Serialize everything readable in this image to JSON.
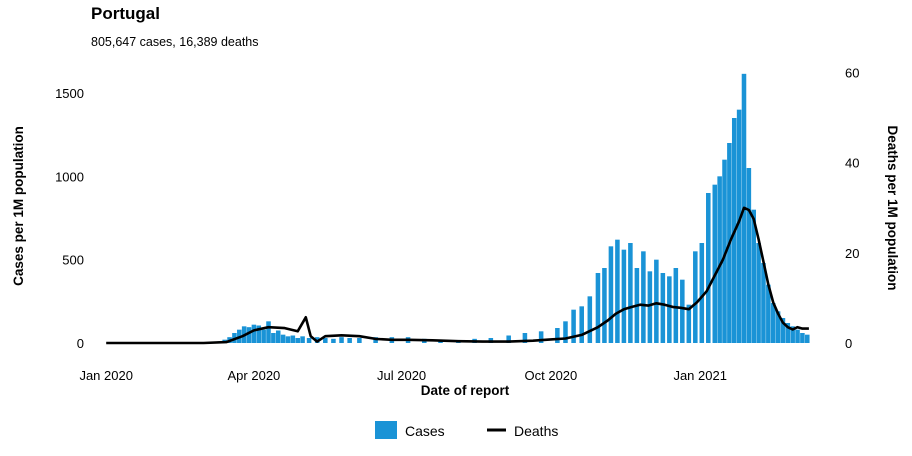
{
  "chart_data": {
    "type": "bar",
    "title": "Portugal",
    "subtitle": "805,647 cases, 16,389 deaths",
    "xlabel": "Date of report",
    "ylabel": "Cases per 1M population",
    "y2label": "Deaths per 1M population",
    "ylim": [
      0,
      1650
    ],
    "y2lim": [
      0,
      61
    ],
    "yticks": [
      0,
      500,
      1000,
      1500
    ],
    "y2ticks": [
      0,
      20,
      40,
      60
    ],
    "xlim": [
      "2019-12-22",
      "2021-03-22"
    ],
    "xticks": [
      {
        "date": "2020-01-01",
        "label": "Jan 2020"
      },
      {
        "date": "2020-04-01",
        "label": "Apr 2020"
      },
      {
        "date": "2020-07-01",
        "label": "Jul 2020"
      },
      {
        "date": "2020-10-01",
        "label": "Oct 2020"
      },
      {
        "date": "2021-01-01",
        "label": "Jan 2021"
      }
    ],
    "grid": false,
    "legend": {
      "placement": "bottom",
      "entries": [
        "Cases",
        "Deaths"
      ]
    },
    "colors": {
      "cases": "#1a93d6",
      "deaths": "#000000"
    },
    "series": [
      {
        "name": "Cases",
        "type": "bar",
        "axis": "left",
        "points": [
          [
            "2020-03-01",
            0
          ],
          [
            "2020-03-05",
            1
          ],
          [
            "2020-03-08",
            3
          ],
          [
            "2020-03-11",
            10
          ],
          [
            "2020-03-14",
            20
          ],
          [
            "2020-03-17",
            35
          ],
          [
            "2020-03-20",
            60
          ],
          [
            "2020-03-23",
            80
          ],
          [
            "2020-03-26",
            100
          ],
          [
            "2020-03-29",
            95
          ],
          [
            "2020-04-01",
            110
          ],
          [
            "2020-04-04",
            105
          ],
          [
            "2020-04-07",
            80
          ],
          [
            "2020-04-10",
            130
          ],
          [
            "2020-04-13",
            60
          ],
          [
            "2020-04-16",
            75
          ],
          [
            "2020-04-19",
            50
          ],
          [
            "2020-04-22",
            40
          ],
          [
            "2020-04-25",
            45
          ],
          [
            "2020-04-28",
            30
          ],
          [
            "2020-05-01",
            40
          ],
          [
            "2020-05-05",
            30
          ],
          [
            "2020-05-10",
            35
          ],
          [
            "2020-05-15",
            30
          ],
          [
            "2020-05-20",
            25
          ],
          [
            "2020-05-25",
            35
          ],
          [
            "2020-05-30",
            30
          ],
          [
            "2020-06-05",
            30
          ],
          [
            "2020-06-15",
            35
          ],
          [
            "2020-06-25",
            35
          ],
          [
            "2020-07-05",
            35
          ],
          [
            "2020-07-15",
            25
          ],
          [
            "2020-07-25",
            20
          ],
          [
            "2020-08-05",
            18
          ],
          [
            "2020-08-15",
            25
          ],
          [
            "2020-08-25",
            30
          ],
          [
            "2020-09-05",
            45
          ],
          [
            "2020-09-15",
            60
          ],
          [
            "2020-09-25",
            70
          ],
          [
            "2020-10-05",
            90
          ],
          [
            "2020-10-10",
            130
          ],
          [
            "2020-10-15",
            200
          ],
          [
            "2020-10-20",
            220
          ],
          [
            "2020-10-25",
            280
          ],
          [
            "2020-10-30",
            420
          ],
          [
            "2020-11-03",
            450
          ],
          [
            "2020-11-07",
            580
          ],
          [
            "2020-11-11",
            620
          ],
          [
            "2020-11-15",
            560
          ],
          [
            "2020-11-19",
            600
          ],
          [
            "2020-11-23",
            450
          ],
          [
            "2020-11-27",
            550
          ],
          [
            "2020-12-01",
            430
          ],
          [
            "2020-12-05",
            500
          ],
          [
            "2020-12-09",
            420
          ],
          [
            "2020-12-13",
            400
          ],
          [
            "2020-12-17",
            450
          ],
          [
            "2020-12-21",
            380
          ],
          [
            "2020-12-25",
            230
          ],
          [
            "2020-12-29",
            550
          ],
          [
            "2021-01-02",
            600
          ],
          [
            "2021-01-06",
            900
          ],
          [
            "2021-01-10",
            950
          ],
          [
            "2021-01-13",
            1000
          ],
          [
            "2021-01-16",
            1100
          ],
          [
            "2021-01-19",
            1200
          ],
          [
            "2021-01-22",
            1350
          ],
          [
            "2021-01-25",
            1400
          ],
          [
            "2021-01-28",
            1615
          ],
          [
            "2021-01-31",
            1050
          ],
          [
            "2021-02-03",
            800
          ],
          [
            "2021-02-06",
            600
          ],
          [
            "2021-02-09",
            480
          ],
          [
            "2021-02-12",
            350
          ],
          [
            "2021-02-15",
            240
          ],
          [
            "2021-02-18",
            190
          ],
          [
            "2021-02-21",
            150
          ],
          [
            "2021-02-24",
            120
          ],
          [
            "2021-02-27",
            100
          ],
          [
            "2021-03-02",
            80
          ],
          [
            "2021-03-05",
            60
          ],
          [
            "2021-03-08",
            50
          ]
        ]
      },
      {
        "name": "Deaths",
        "type": "line",
        "axis": "right",
        "points": [
          [
            "2020-01-01",
            0
          ],
          [
            "2020-03-01",
            0
          ],
          [
            "2020-03-15",
            0.2
          ],
          [
            "2020-03-25",
            1.5
          ],
          [
            "2020-04-01",
            2.8
          ],
          [
            "2020-04-10",
            3.5
          ],
          [
            "2020-04-20",
            3.3
          ],
          [
            "2020-04-28",
            2.6
          ],
          [
            "2020-05-03",
            5.7
          ],
          [
            "2020-05-06",
            1.5
          ],
          [
            "2020-05-10",
            0.3
          ],
          [
            "2020-05-15",
            1.5
          ],
          [
            "2020-05-25",
            1.7
          ],
          [
            "2020-06-05",
            1.5
          ],
          [
            "2020-06-15",
            0.9
          ],
          [
            "2020-06-25",
            0.7
          ],
          [
            "2020-07-05",
            0.7
          ],
          [
            "2020-07-20",
            0.6
          ],
          [
            "2020-08-05",
            0.4
          ],
          [
            "2020-08-20",
            0.3
          ],
          [
            "2020-09-05",
            0.3
          ],
          [
            "2020-09-20",
            0.5
          ],
          [
            "2020-10-01",
            0.8
          ],
          [
            "2020-10-10",
            1.0
          ],
          [
            "2020-10-20",
            1.8
          ],
          [
            "2020-10-30",
            3.5
          ],
          [
            "2020-11-05",
            5.0
          ],
          [
            "2020-11-10",
            6.5
          ],
          [
            "2020-11-15",
            7.5
          ],
          [
            "2020-11-20",
            8.0
          ],
          [
            "2020-11-25",
            8.5
          ],
          [
            "2020-11-30",
            8.3
          ],
          [
            "2020-12-05",
            8.8
          ],
          [
            "2020-12-10",
            8.5
          ],
          [
            "2020-12-15",
            8.0
          ],
          [
            "2020-12-20",
            7.8
          ],
          [
            "2020-12-25",
            7.5
          ],
          [
            "2020-12-30",
            9.0
          ],
          [
            "2021-01-05",
            11.5
          ],
          [
            "2021-01-10",
            15.0
          ],
          [
            "2021-01-15",
            18.5
          ],
          [
            "2021-01-20",
            23.0
          ],
          [
            "2021-01-25",
            27.0
          ],
          [
            "2021-01-28",
            30.0
          ],
          [
            "2021-01-31",
            29.5
          ],
          [
            "2021-02-03",
            27.5
          ],
          [
            "2021-02-06",
            23.0
          ],
          [
            "2021-02-09",
            18.0
          ],
          [
            "2021-02-12",
            13.0
          ],
          [
            "2021-02-15",
            9.0
          ],
          [
            "2021-02-18",
            6.5
          ],
          [
            "2021-02-21",
            4.5
          ],
          [
            "2021-02-24",
            3.5
          ],
          [
            "2021-02-27",
            3.0
          ],
          [
            "2021-03-02",
            3.5
          ],
          [
            "2021-03-05",
            3.2
          ],
          [
            "2021-03-09",
            3.2
          ]
        ]
      }
    ]
  }
}
